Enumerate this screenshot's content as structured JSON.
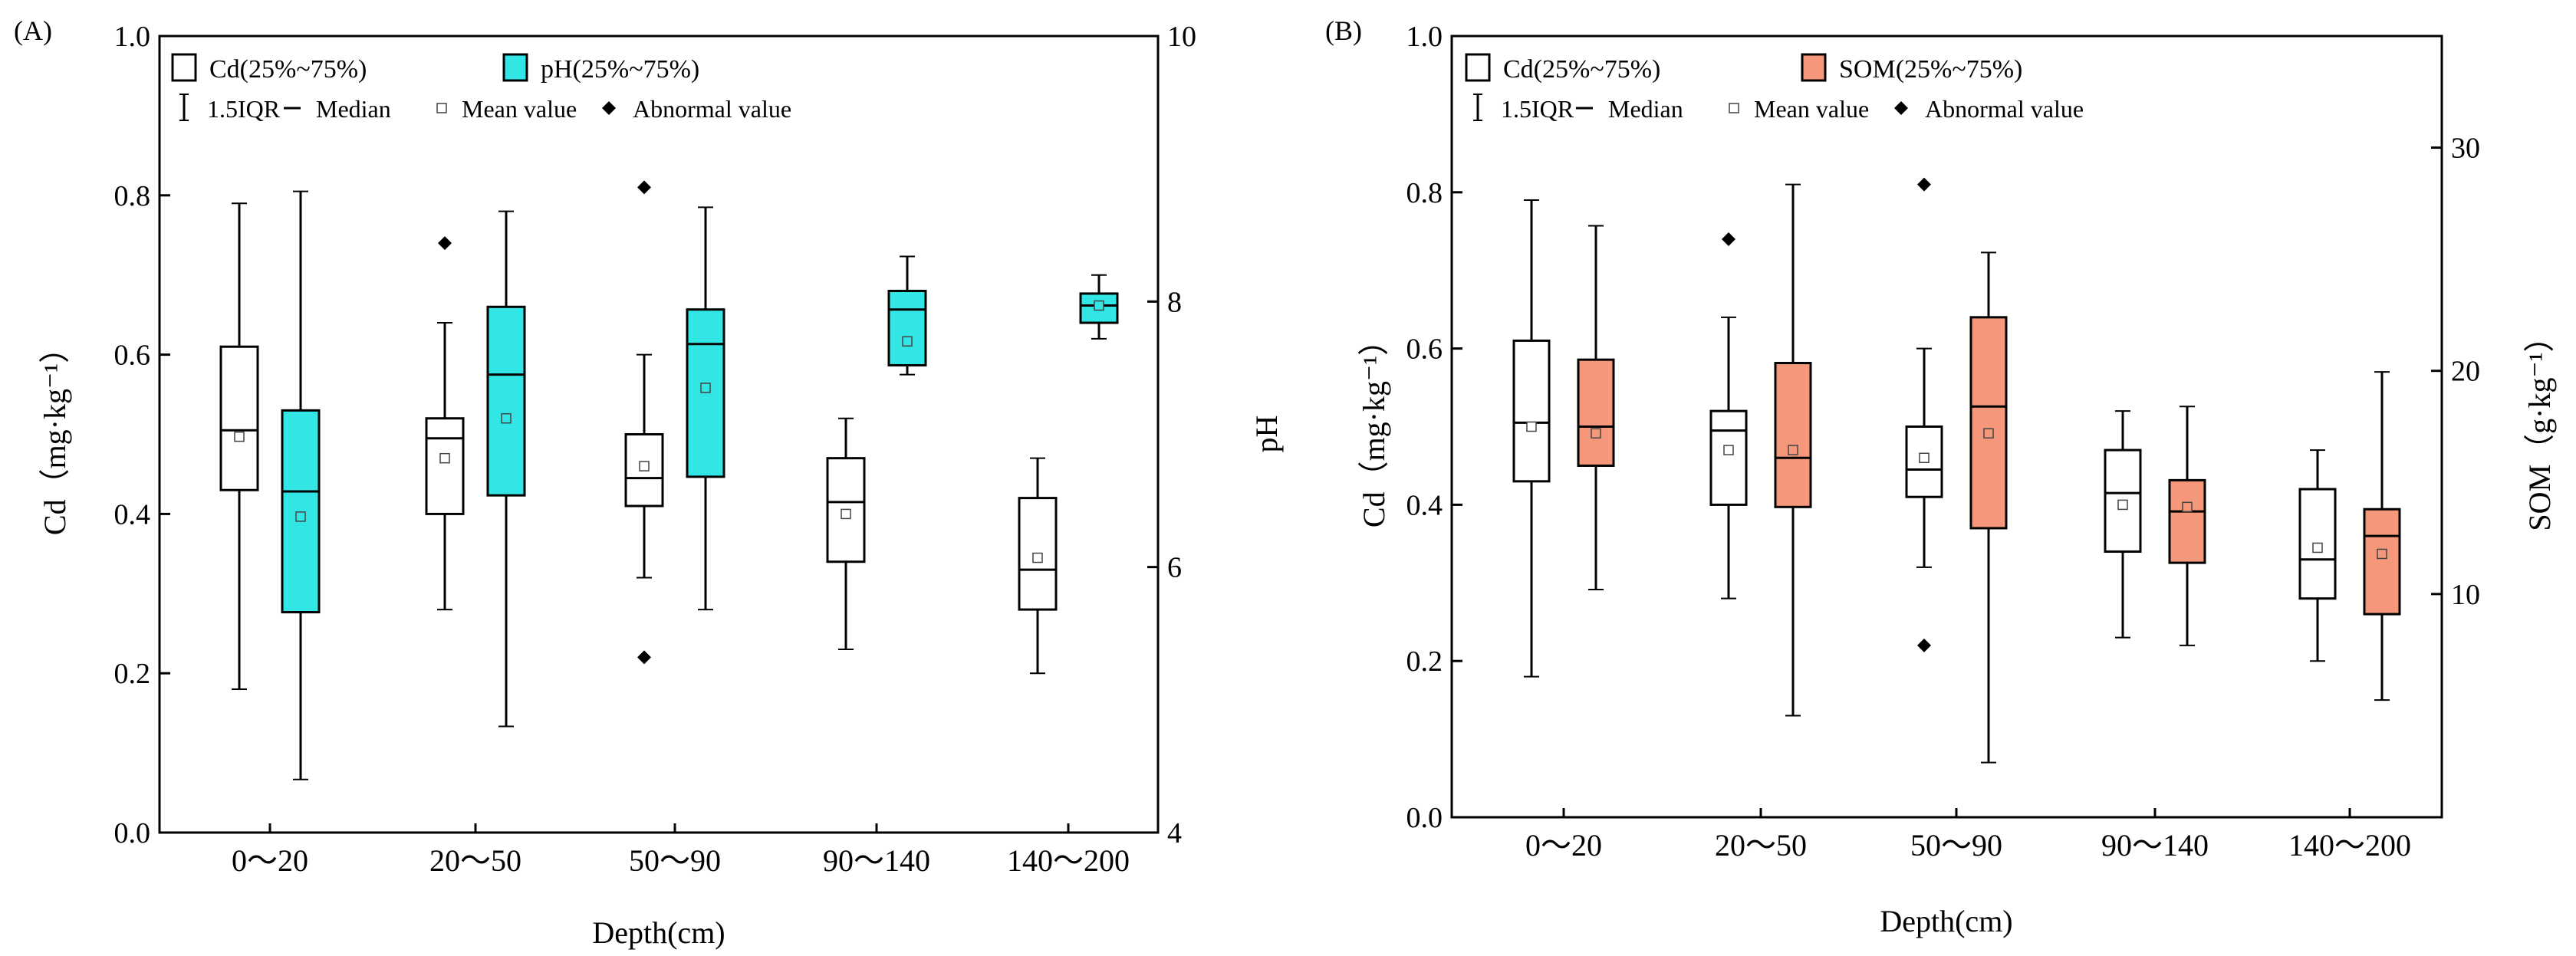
{
  "chart_data": [
    {
      "type": "box",
      "panel_label": "(A)",
      "xlabel": "Depth(cm)",
      "ylabel_left": "Cd（mg·kg⁻¹）",
      "ylabel_right": "pH",
      "categories": [
        "0～20",
        "20～50",
        "50～90",
        "90～140",
        "140～200"
      ],
      "left_axis": {
        "range": [
          0,
          1.0
        ],
        "ticks": [
          "0.0",
          "0.2",
          "0.4",
          "0.6",
          "0.8",
          "1.0"
        ]
      },
      "right_axis": {
        "range": [
          4,
          10
        ],
        "ticks": [
          "4",
          "6",
          "8",
          "10"
        ]
      },
      "legend": {
        "box_labels": [
          "Cd(25%~75%)",
          "pH(25%~75%)"
        ],
        "iqr_label": "1.5IQR",
        "median_label": "Median",
        "mean_label": "Mean value",
        "outlier_label": "Abnormal value"
      },
      "series": [
        {
          "name": "Cd",
          "axis": "left",
          "color": "#ffffff",
          "boxes": [
            {
              "whisker_low": 0.18,
              "q1": 0.43,
              "median": 0.505,
              "q3": 0.61,
              "whisker_high": 0.79,
              "mean": 0.497,
              "outliers": []
            },
            {
              "whisker_low": 0.28,
              "q1": 0.4,
              "median": 0.495,
              "q3": 0.52,
              "whisker_high": 0.64,
              "mean": 0.47,
              "outliers": [
                0.74
              ]
            },
            {
              "whisker_low": 0.32,
              "q1": 0.41,
              "median": 0.445,
              "q3": 0.5,
              "whisker_high": 0.6,
              "mean": 0.46,
              "outliers": [
                0.22,
                0.81
              ]
            },
            {
              "whisker_low": 0.23,
              "q1": 0.34,
              "median": 0.415,
              "q3": 0.47,
              "whisker_high": 0.52,
              "mean": 0.4,
              "outliers": []
            },
            {
              "whisker_low": 0.2,
              "q1": 0.28,
              "median": 0.33,
              "q3": 0.42,
              "whisker_high": 0.47,
              "mean": 0.345,
              "outliers": []
            }
          ]
        },
        {
          "name": "pH",
          "axis": "right",
          "color": "#33e6e6",
          "boxes": [
            {
              "whisker_low": 4.4,
              "q1": 5.66,
              "median": 6.57,
              "q3": 7.18,
              "whisker_high": 8.83,
              "mean": 6.38,
              "outliers": []
            },
            {
              "whisker_low": 4.8,
              "q1": 6.54,
              "median": 7.45,
              "q3": 7.96,
              "whisker_high": 8.68,
              "mean": 7.12,
              "outliers": []
            },
            {
              "whisker_low": 5.68,
              "q1": 6.68,
              "median": 7.68,
              "q3": 7.94,
              "whisker_high": 8.71,
              "mean": 7.35,
              "outliers": []
            },
            {
              "whisker_low": 7.45,
              "q1": 7.52,
              "median": 7.94,
              "q3": 8.08,
              "whisker_high": 8.34,
              "mean": 7.7,
              "outliers": []
            },
            {
              "whisker_low": 7.72,
              "q1": 7.84,
              "median": 7.97,
              "q3": 8.06,
              "whisker_high": 8.2,
              "mean": 7.97,
              "outliers": []
            }
          ]
        }
      ]
    },
    {
      "type": "box",
      "panel_label": "(B)",
      "xlabel": "Depth(cm)",
      "ylabel_left": "Cd（mg·kg⁻¹）",
      "ylabel_right": "SOM（g·kg⁻¹）",
      "categories": [
        "0～20",
        "20～50",
        "50～90",
        "90～140",
        "140～200"
      ],
      "left_axis": {
        "range": [
          0,
          1.0
        ],
        "ticks": [
          "0.0",
          "0.2",
          "0.4",
          "0.6",
          "0.8",
          "1.0"
        ]
      },
      "right_axis": {
        "range": [
          0,
          35
        ],
        "ticks": [
          "10",
          "20",
          "30"
        ]
      },
      "legend": {
        "box_labels": [
          "Cd(25%~75%)",
          "SOM(25%~75%)"
        ],
        "iqr_label": "1.5IQR",
        "median_label": "Median",
        "mean_label": "Mean value",
        "outlier_label": "Abnormal value"
      },
      "series": [
        {
          "name": "Cd",
          "axis": "left",
          "color": "#ffffff",
          "boxes": [
            {
              "whisker_low": 0.18,
              "q1": 0.43,
              "median": 0.505,
              "q3": 0.61,
              "whisker_high": 0.79,
              "mean": 0.5,
              "outliers": []
            },
            {
              "whisker_low": 0.28,
              "q1": 0.4,
              "median": 0.495,
              "q3": 0.52,
              "whisker_high": 0.64,
              "mean": 0.47,
              "outliers": [
                0.74
              ]
            },
            {
              "whisker_low": 0.32,
              "q1": 0.41,
              "median": 0.445,
              "q3": 0.5,
              "whisker_high": 0.6,
              "mean": 0.46,
              "outliers": [
                0.22,
                0.81
              ]
            },
            {
              "whisker_low": 0.23,
              "q1": 0.34,
              "median": 0.415,
              "q3": 0.47,
              "whisker_high": 0.52,
              "mean": 0.4,
              "outliers": []
            },
            {
              "whisker_low": 0.2,
              "q1": 0.28,
              "median": 0.33,
              "q3": 0.42,
              "whisker_high": 0.47,
              "mean": 0.345,
              "outliers": []
            }
          ]
        },
        {
          "name": "SOM",
          "axis": "right",
          "color": "#f4977a",
          "boxes": [
            {
              "whisker_low": 10.2,
              "q1": 15.75,
              "median": 17.5,
              "q3": 20.5,
              "whisker_high": 26.5,
              "mean": 17.2,
              "outliers": []
            },
            {
              "whisker_low": 4.55,
              "q1": 13.9,
              "median": 16.1,
              "q3": 20.35,
              "whisker_high": 28.35,
              "mean": 16.45,
              "outliers": []
            },
            {
              "whisker_low": 2.45,
              "q1": 12.95,
              "median": 18.4,
              "q3": 22.4,
              "whisker_high": 25.3,
              "mean": 17.2,
              "outliers": []
            },
            {
              "whisker_low": 7.7,
              "q1": 11.4,
              "median": 13.7,
              "q3": 15.1,
              "whisker_high": 18.4,
              "mean": 13.9,
              "outliers": []
            },
            {
              "whisker_low": 5.25,
              "q1": 9.1,
              "median": 12.6,
              "q3": 13.8,
              "whisker_high": 19.95,
              "mean": 11.8,
              "outliers": []
            }
          ]
        }
      ]
    }
  ]
}
